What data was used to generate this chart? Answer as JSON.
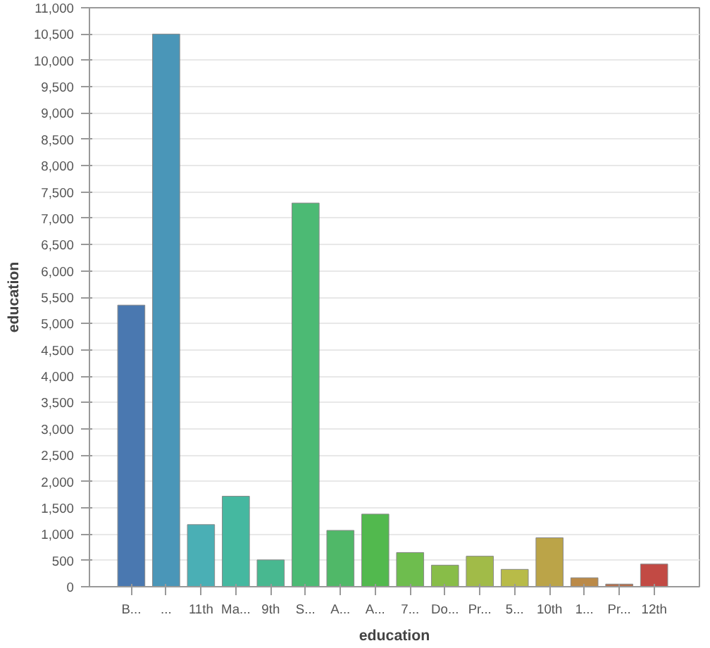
{
  "chart_data": {
    "type": "bar",
    "xlabel": "education",
    "ylabel": "education",
    "categories": [
      "B...",
      "...",
      "11th",
      "Ma...",
      "9th",
      "S...",
      "A...",
      "A...",
      "7...",
      "Do...",
      "Pr...",
      "5...",
      "10th",
      "1...",
      "Pr...",
      "12th"
    ],
    "values": [
      5350,
      10500,
      1180,
      1720,
      510,
      7290,
      1070,
      1380,
      650,
      410,
      580,
      330,
      930,
      170,
      50,
      430
    ],
    "colors": [
      "#4a78b0",
      "#4a96b8",
      "#4aafb5",
      "#45b8a0",
      "#48b890",
      "#4cba74",
      "#50b868",
      "#52b94e",
      "#6ebd4e",
      "#88bd48",
      "#a1bb48",
      "#b8bb48",
      "#bba448",
      "#bb8a48",
      "#b46e4c",
      "#c24a44"
    ],
    "ylim": [
      0,
      11000
    ],
    "yticks": [
      0,
      500,
      {
        "value": 1000,
        "label": "1,000"
      },
      {
        "value": 1500,
        "label": "1,500"
      },
      {
        "value": 2000,
        "label": "2,000"
      },
      {
        "value": 2500,
        "label": "2,500"
      },
      {
        "value": 3000,
        "label": "3,000"
      },
      {
        "value": 3500,
        "label": "3,500"
      },
      {
        "value": 4000,
        "label": "4,000"
      },
      {
        "value": 4500,
        "label": "4,500"
      },
      {
        "value": 5000,
        "label": "5,000"
      },
      {
        "value": 5500,
        "label": "5,500"
      },
      {
        "value": 6000,
        "label": "6,000"
      },
      {
        "value": 6500,
        "label": "6,500"
      },
      {
        "value": 7000,
        "label": "7,000"
      },
      {
        "value": 7500,
        "label": "7,500"
      },
      {
        "value": 8000,
        "label": "8,000"
      },
      {
        "value": 8500,
        "label": "8,500"
      },
      {
        "value": 9000,
        "label": "9,000"
      },
      {
        "value": 9500,
        "label": "9,500"
      },
      {
        "value": 10000,
        "label": "10,000"
      },
      {
        "value": 10500,
        "label": "10,500"
      },
      {
        "value": 11000,
        "label": "11,000"
      }
    ],
    "grid": "y"
  }
}
